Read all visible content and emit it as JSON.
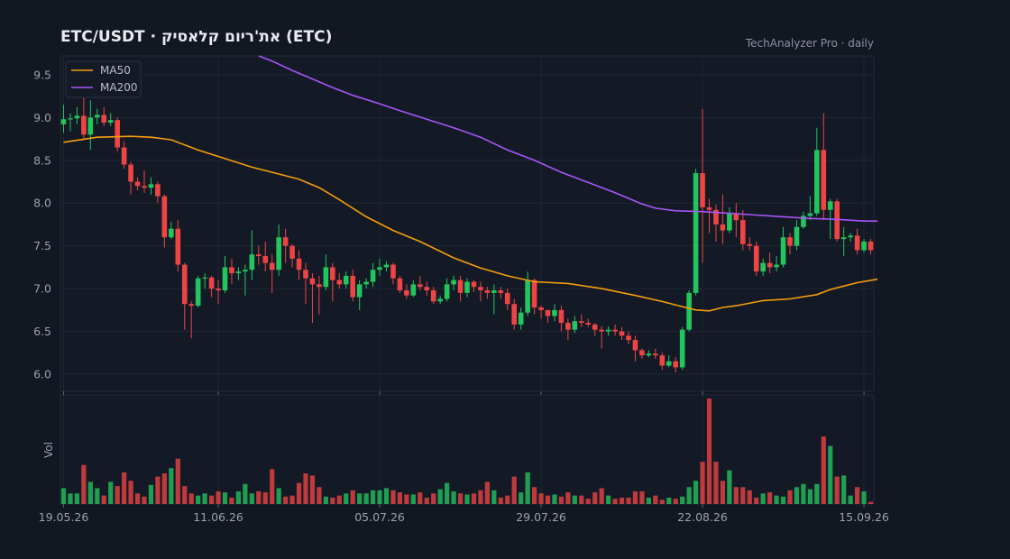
{
  "header": {
    "title": "ETC/USDT  ·  את'ריום קלאסיק (ETC)",
    "subtitle": "TechAnalyzer Pro · daily"
  },
  "chart_data": {
    "type": "candlestick",
    "colors": {
      "up": "#22c55e",
      "down": "#ef4444",
      "ma50": "#f59e0b",
      "ma200": "#a855f7",
      "background": "#121722",
      "panel": "#131a26",
      "grid": "#1f2734"
    },
    "price_axis": {
      "ylim": [
        5.8,
        9.72
      ],
      "ticks": [
        6.0,
        6.5,
        7.0,
        7.5,
        8.0,
        8.5,
        9.0,
        9.5
      ]
    },
    "x_ticks": [
      {
        "label": "19.05.26",
        "index": 0
      },
      {
        "label": "11.06.26",
        "index": 23
      },
      {
        "label": "05.07.26",
        "index": 47
      },
      {
        "label": "29.07.26",
        "index": 71
      },
      {
        "label": "22.08.26",
        "index": 95
      },
      {
        "label": "15.09.26",
        "index": 119
      }
    ],
    "legend": {
      "position": "top-left",
      "entries": [
        "MA50",
        "MA200"
      ]
    },
    "volume_axis": {
      "label": "Vol",
      "ylim": [
        0,
        1
      ]
    },
    "candles": [
      [
        8.92,
        8.98,
        8.82,
        9.15
      ],
      [
        8.98,
        8.99,
        8.84,
        9.05
      ],
      [
        8.99,
        9.02,
        8.92,
        9.12
      ],
      [
        9.02,
        8.8,
        8.75,
        9.25
      ],
      [
        8.8,
        9.0,
        8.62,
        9.2
      ],
      [
        9.0,
        9.03,
        8.92,
        9.1
      ],
      [
        9.03,
        8.94,
        8.9,
        9.12
      ],
      [
        8.94,
        8.97,
        8.9,
        9.05
      ],
      [
        8.97,
        8.65,
        8.6,
        9.0
      ],
      [
        8.65,
        8.45,
        8.4,
        8.72
      ],
      [
        8.45,
        8.25,
        8.1,
        8.48
      ],
      [
        8.25,
        8.2,
        8.15,
        8.3
      ],
      [
        8.2,
        8.18,
        8.12,
        8.38
      ],
      [
        8.18,
        8.22,
        8.1,
        8.3
      ],
      [
        8.22,
        8.08,
        8.0,
        8.25
      ],
      [
        8.08,
        7.6,
        7.48,
        8.1
      ],
      [
        7.6,
        7.7,
        7.58,
        7.78
      ],
      [
        7.7,
        7.28,
        7.2,
        7.8
      ],
      [
        7.28,
        6.82,
        6.52,
        7.3
      ],
      [
        6.82,
        6.8,
        6.42,
        6.85
      ],
      [
        6.8,
        7.12,
        6.78,
        7.15
      ],
      [
        7.12,
        7.13,
        7.0,
        7.18
      ],
      [
        7.13,
        7.0,
        6.9,
        7.15
      ],
      [
        7.0,
        6.98,
        6.82,
        7.1
      ],
      [
        6.98,
        7.25,
        6.95,
        7.38
      ],
      [
        7.25,
        7.18,
        7.05,
        7.35
      ],
      [
        7.18,
        7.2,
        7.1,
        7.25
      ],
      [
        7.2,
        7.22,
        6.92,
        7.28
      ],
      [
        7.22,
        7.4,
        7.1,
        7.68
      ],
      [
        7.4,
        7.38,
        7.28,
        7.5
      ],
      [
        7.38,
        7.3,
        7.2,
        7.55
      ],
      [
        7.3,
        7.22,
        6.95,
        7.4
      ],
      [
        7.22,
        7.6,
        7.15,
        7.75
      ],
      [
        7.6,
        7.5,
        7.3,
        7.7
      ],
      [
        7.5,
        7.35,
        7.25,
        7.52
      ],
      [
        7.35,
        7.22,
        7.1,
        7.45
      ],
      [
        7.22,
        7.12,
        6.82,
        7.3
      ],
      [
        7.12,
        7.05,
        6.6,
        7.18
      ],
      [
        7.05,
        7.02,
        6.7,
        7.15
      ],
      [
        7.02,
        7.25,
        6.98,
        7.4
      ],
      [
        7.25,
        7.1,
        6.85,
        7.3
      ],
      [
        7.1,
        7.05,
        7.0,
        7.18
      ],
      [
        7.05,
        7.15,
        7.0,
        7.2
      ],
      [
        7.15,
        6.9,
        6.85,
        7.22
      ],
      [
        6.9,
        7.05,
        6.75,
        7.1
      ],
      [
        7.05,
        7.08,
        7.0,
        7.12
      ],
      [
        7.08,
        7.22,
        7.02,
        7.3
      ],
      [
        7.22,
        7.25,
        7.15,
        7.35
      ],
      [
        7.25,
        7.28,
        7.2,
        7.32
      ],
      [
        7.28,
        7.12,
        7.05,
        7.3
      ],
      [
        7.12,
        6.98,
        6.95,
        7.15
      ],
      [
        6.98,
        6.92,
        6.88,
        7.05
      ],
      [
        6.92,
        7.05,
        6.9,
        7.1
      ],
      [
        7.05,
        7.02,
        6.98,
        7.15
      ],
      [
        7.02,
        6.98,
        6.92,
        7.08
      ],
      [
        6.98,
        6.85,
        6.82,
        7.02
      ],
      [
        6.85,
        6.88,
        6.82,
        6.92
      ],
      [
        6.88,
        7.05,
        6.85,
        7.12
      ],
      [
        7.05,
        7.1,
        6.98,
        7.15
      ],
      [
        7.1,
        6.95,
        6.85,
        7.15
      ],
      [
        6.95,
        7.08,
        6.9,
        7.12
      ],
      [
        7.08,
        7.02,
        6.96,
        7.1
      ],
      [
        7.02,
        6.98,
        6.85,
        7.08
      ],
      [
        6.98,
        6.95,
        6.88,
        7.02
      ],
      [
        6.95,
        6.98,
        6.7,
        7.05
      ],
      [
        6.98,
        6.95,
        6.88,
        7.02
      ],
      [
        6.95,
        6.82,
        6.75,
        7.0
      ],
      [
        6.82,
        6.58,
        6.52,
        6.88
      ],
      [
        6.58,
        6.72,
        6.52,
        6.78
      ],
      [
        6.72,
        7.1,
        6.68,
        7.2
      ],
      [
        7.1,
        6.78,
        6.7,
        7.12
      ],
      [
        6.78,
        6.75,
        6.65,
        6.8
      ],
      [
        6.75,
        6.68,
        6.6,
        6.72
      ],
      [
        6.68,
        6.75,
        6.62,
        6.82
      ],
      [
        6.75,
        6.6,
        6.5,
        6.8
      ],
      [
        6.6,
        6.52,
        6.4,
        6.65
      ],
      [
        6.52,
        6.62,
        6.48,
        6.68
      ],
      [
        6.62,
        6.6,
        6.55,
        6.7
      ],
      [
        6.6,
        6.58,
        6.55,
        6.65
      ],
      [
        6.58,
        6.52,
        6.45,
        6.6
      ],
      [
        6.52,
        6.5,
        6.3,
        6.56
      ],
      [
        6.5,
        6.52,
        6.45,
        6.56
      ],
      [
        6.52,
        6.5,
        6.45,
        6.58
      ],
      [
        6.5,
        6.45,
        6.4,
        6.55
      ],
      [
        6.45,
        6.4,
        6.35,
        6.5
      ],
      [
        6.4,
        6.28,
        6.15,
        6.45
      ],
      [
        6.28,
        6.22,
        6.18,
        6.3
      ],
      [
        6.22,
        6.24,
        6.2,
        6.28
      ],
      [
        6.24,
        6.22,
        6.18,
        6.3
      ],
      [
        6.22,
        6.1,
        6.05,
        6.25
      ],
      [
        6.1,
        6.15,
        6.08,
        6.22
      ],
      [
        6.15,
        6.08,
        6.02,
        6.2
      ],
      [
        6.08,
        6.52,
        6.05,
        6.55
      ],
      [
        6.52,
        6.95,
        6.5,
        6.98
      ],
      [
        6.95,
        8.35,
        6.92,
        8.4
      ],
      [
        8.35,
        7.95,
        7.3,
        9.1
      ],
      [
        7.95,
        7.92,
        7.65,
        8.05
      ],
      [
        7.92,
        7.75,
        7.55,
        7.98
      ],
      [
        7.75,
        7.68,
        7.52,
        8.1
      ],
      [
        7.68,
        7.88,
        7.65,
        7.95
      ],
      [
        7.88,
        7.8,
        7.6,
        8.0
      ],
      [
        7.8,
        7.52,
        7.45,
        7.92
      ],
      [
        7.52,
        7.5,
        7.45,
        7.6
      ],
      [
        7.5,
        7.2,
        7.15,
        7.55
      ],
      [
        7.2,
        7.3,
        7.15,
        7.35
      ],
      [
        7.3,
        7.25,
        7.18,
        7.42
      ],
      [
        7.25,
        7.28,
        7.2,
        7.38
      ],
      [
        7.28,
        7.6,
        7.25,
        7.72
      ],
      [
        7.6,
        7.5,
        7.4,
        7.65
      ],
      [
        7.5,
        7.72,
        7.45,
        7.8
      ],
      [
        7.72,
        7.85,
        7.7,
        7.9
      ],
      [
        7.85,
        7.88,
        7.8,
        8.08
      ],
      [
        7.88,
        8.62,
        7.85,
        8.88
      ],
      [
        8.62,
        7.92,
        7.8,
        9.05
      ],
      [
        7.92,
        8.02,
        7.58,
        8.05
      ],
      [
        8.02,
        7.58,
        7.55,
        8.05
      ],
      [
        7.58,
        7.6,
        7.38,
        7.72
      ],
      [
        7.6,
        7.62,
        7.55,
        7.65
      ],
      [
        7.62,
        7.45,
        7.4,
        7.7
      ],
      [
        7.45,
        7.55,
        7.42,
        7.58
      ],
      [
        7.55,
        7.45,
        7.4,
        7.58
      ]
    ],
    "volume": [
      0.15,
      0.1,
      0.1,
      0.37,
      0.21,
      0.15,
      0.08,
      0.21,
      0.17,
      0.3,
      0.22,
      0.1,
      0.07,
      0.18,
      0.26,
      0.29,
      0.34,
      0.43,
      0.17,
      0.1,
      0.08,
      0.1,
      0.08,
      0.12,
      0.11,
      0.06,
      0.12,
      0.19,
      0.1,
      0.12,
      0.11,
      0.33,
      0.15,
      0.07,
      0.08,
      0.2,
      0.29,
      0.27,
      0.16,
      0.07,
      0.06,
      0.08,
      0.1,
      0.13,
      0.1,
      0.1,
      0.13,
      0.13,
      0.15,
      0.13,
      0.11,
      0.09,
      0.09,
      0.11,
      0.06,
      0.1,
      0.14,
      0.2,
      0.12,
      0.1,
      0.09,
      0.1,
      0.13,
      0.21,
      0.13,
      0.06,
      0.08,
      0.26,
      0.11,
      0.3,
      0.16,
      0.1,
      0.08,
      0.09,
      0.07,
      0.11,
      0.08,
      0.08,
      0.05,
      0.11,
      0.15,
      0.08,
      0.05,
      0.06,
      0.06,
      0.12,
      0.12,
      0.06,
      0.08,
      0.04,
      0.06,
      0.05,
      0.07,
      0.16,
      0.22,
      0.4,
      1.0,
      0.4,
      0.22,
      0.32,
      0.16,
      0.16,
      0.13,
      0.06,
      0.1,
      0.11,
      0.08,
      0.07,
      0.13,
      0.16,
      0.19,
      0.14,
      0.19,
      0.64,
      0.55,
      0.26,
      0.27,
      0.08,
      0.16,
      0.12,
      0.02
    ],
    "ma50": [
      [
        0,
        8.71
      ],
      [
        5,
        8.77
      ],
      [
        10,
        8.78
      ],
      [
        13,
        8.77
      ],
      [
        16,
        8.74
      ],
      [
        20,
        8.62
      ],
      [
        24,
        8.52
      ],
      [
        28,
        8.42
      ],
      [
        32,
        8.34
      ],
      [
        35,
        8.28
      ],
      [
        38,
        8.18
      ],
      [
        41,
        8.04
      ],
      [
        45,
        7.84
      ],
      [
        49,
        7.68
      ],
      [
        53,
        7.55
      ],
      [
        58,
        7.36
      ],
      [
        62,
        7.24
      ],
      [
        66,
        7.15
      ],
      [
        70,
        7.08
      ],
      [
        75,
        7.06
      ],
      [
        80,
        7.0
      ],
      [
        85,
        6.92
      ],
      [
        89,
        6.85
      ],
      [
        92,
        6.79
      ],
      [
        94,
        6.75
      ],
      [
        96,
        6.74
      ],
      [
        98,
        6.78
      ],
      [
        100,
        6.8
      ],
      [
        104,
        6.86
      ],
      [
        108,
        6.88
      ],
      [
        112,
        6.93
      ],
      [
        114,
        6.99
      ],
      [
        116,
        7.03
      ],
      [
        118,
        7.07
      ],
      [
        121,
        7.11
      ]
    ],
    "ma200": [
      [
        29,
        9.72
      ],
      [
        31,
        9.66
      ],
      [
        34,
        9.55
      ],
      [
        37,
        9.45
      ],
      [
        40,
        9.35
      ],
      [
        43,
        9.26
      ],
      [
        47,
        9.16
      ],
      [
        50,
        9.08
      ],
      [
        54,
        8.98
      ],
      [
        58,
        8.88
      ],
      [
        62,
        8.77
      ],
      [
        66,
        8.62
      ],
      [
        70,
        8.5
      ],
      [
        74,
        8.36
      ],
      [
        78,
        8.24
      ],
      [
        82,
        8.12
      ],
      [
        86,
        7.99
      ],
      [
        88,
        7.94
      ],
      [
        91,
        7.91
      ],
      [
        95,
        7.9
      ],
      [
        99,
        7.88
      ],
      [
        103,
        7.86
      ],
      [
        107,
        7.84
      ],
      [
        111,
        7.82
      ],
      [
        115,
        7.81
      ],
      [
        119,
        7.79
      ],
      [
        121,
        7.79
      ]
    ]
  }
}
